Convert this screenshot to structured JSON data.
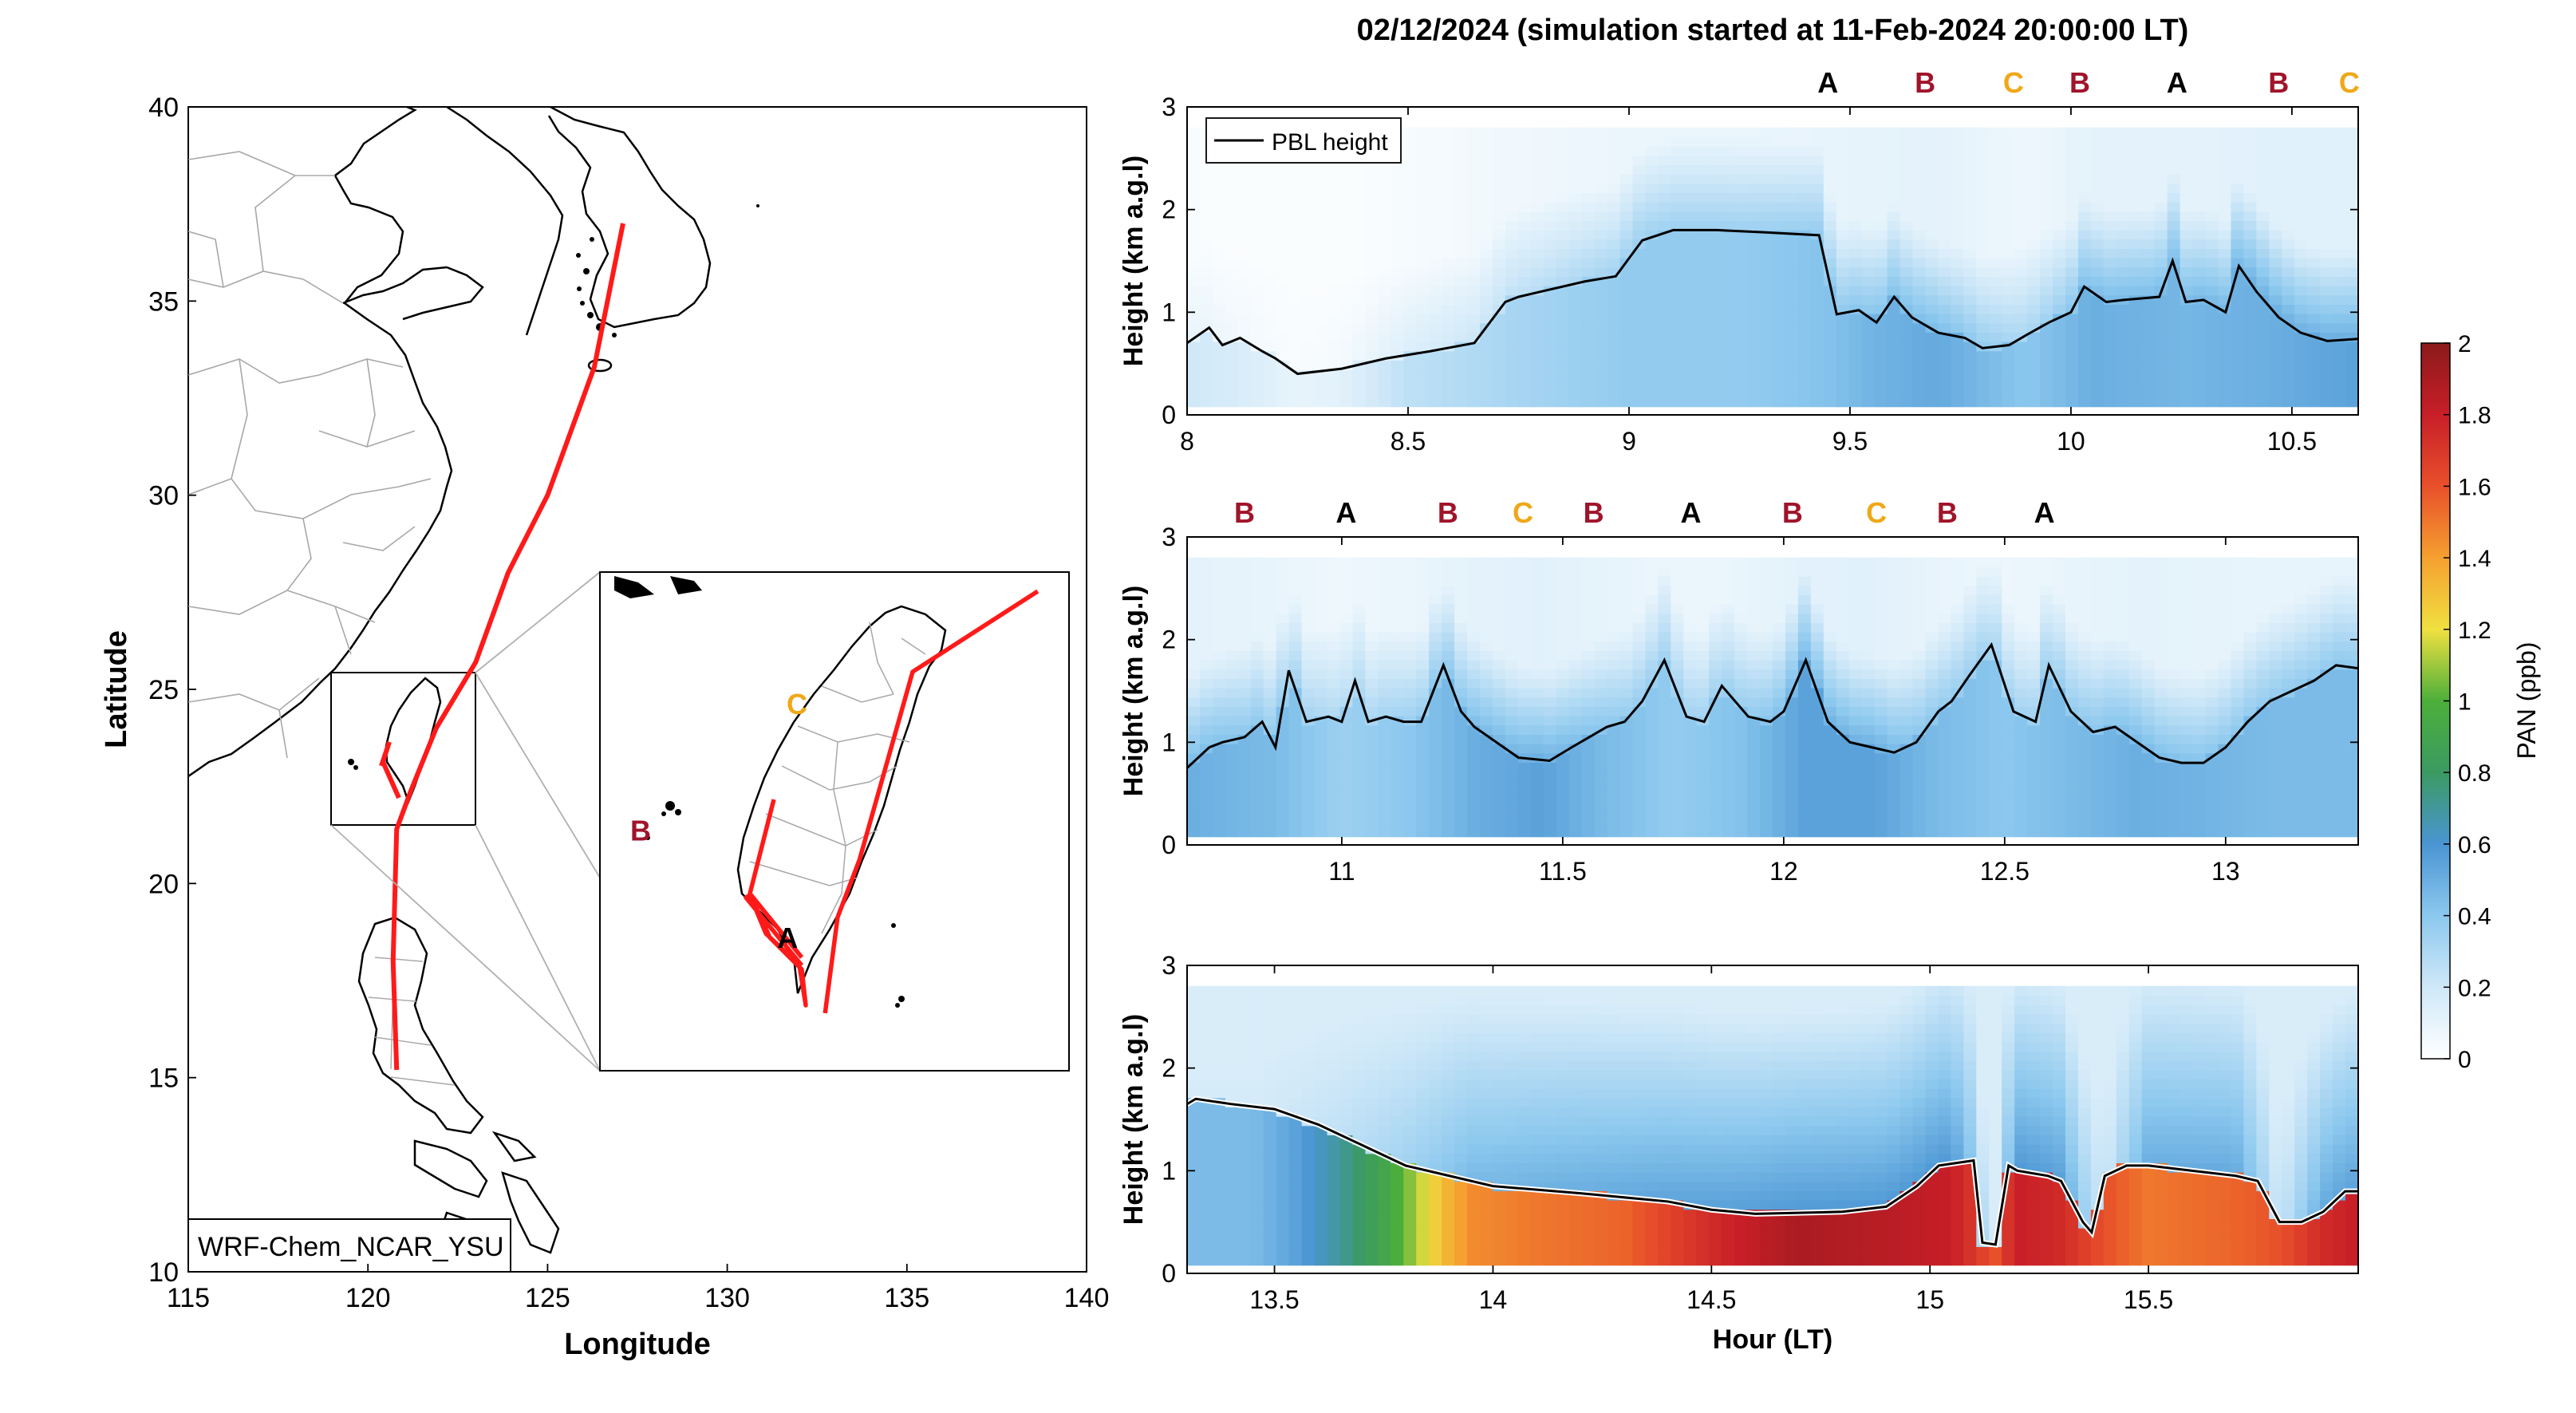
{
  "title": "02/12/2024 (simulation started at 11-Feb-2024 20:00:00 LT)",
  "colors": {
    "track": "#ff1a1a",
    "label_A": "#000000",
    "label_B": "#a0142a",
    "label_C": "#f0a818",
    "pbl_line": "#000000",
    "coast": "#000000",
    "border": "#a8a8a8"
  },
  "map": {
    "xlabel": "Longitude",
    "ylabel": "Latitude",
    "xticks": [
      115,
      120,
      125,
      130,
      135,
      140
    ],
    "yticks": [
      10,
      15,
      20,
      25,
      30,
      35,
      40
    ],
    "xlim": [
      115,
      140
    ],
    "ylim": [
      10,
      40
    ],
    "model_label": "WRF-Chem_NCAR_YSU",
    "inset_markers": [
      "A",
      "B",
      "C"
    ],
    "track_points": [
      [
        127.1,
        37.0
      ],
      [
        126.3,
        33.3
      ],
      [
        125.0,
        30.0
      ],
      [
        123.9,
        28.0
      ],
      [
        123.0,
        25.7
      ],
      [
        121.9,
        24.0
      ],
      [
        121.2,
        22.4
      ],
      [
        120.8,
        21.4
      ],
      [
        120.7,
        18.0
      ],
      [
        120.8,
        15.2
      ]
    ],
    "inset_track_points": [
      [
        139.0,
        25.5
      ],
      [
        135.0,
        23.4
      ],
      [
        133.3,
        18.5
      ],
      [
        132.6,
        17.0
      ],
      [
        132.2,
        14.5
      ]
    ],
    "inset_label_positions": {
      "A": [
        131.0,
        16.2
      ],
      "B": [
        126.3,
        19.0
      ],
      "C": [
        131.3,
        22.3
      ]
    },
    "inset_box": {
      "x": [
        119.0,
        123.0
      ],
      "y": [
        21.5,
        26.5
      ]
    }
  },
  "chart_data": [
    {
      "type": "heatmap",
      "panel": "top",
      "title": "",
      "xlabel": "",
      "ylabel": "Height (km a.g.l)",
      "xlim": [
        8.0,
        10.65
      ],
      "ylim": [
        0,
        3
      ],
      "xticks": [
        8,
        8.5,
        9,
        9.5,
        10,
        10.5
      ],
      "yticks": [
        0,
        1,
        2,
        3
      ],
      "legend": {
        "entry": "PBL height",
        "position": "top-left"
      },
      "site_labels": [
        {
          "x": 9.45,
          "label": "A"
        },
        {
          "x": 9.67,
          "label": "B"
        },
        {
          "x": 9.87,
          "label": "C"
        },
        {
          "x": 10.02,
          "label": "B"
        },
        {
          "x": 10.24,
          "label": "A"
        },
        {
          "x": 10.47,
          "label": "B"
        },
        {
          "x": 10.63,
          "label": "C"
        }
      ],
      "pbl_height": {
        "x": [
          8.0,
          8.05,
          8.08,
          8.12,
          8.17,
          8.2,
          8.25,
          8.35,
          8.45,
          8.55,
          8.65,
          8.72,
          8.75,
          8.8,
          8.9,
          8.97,
          9.03,
          9.1,
          9.2,
          9.3,
          9.43,
          9.47,
          9.52,
          9.56,
          9.6,
          9.64,
          9.7,
          9.76,
          9.8,
          9.86,
          9.9,
          9.95,
          10.0,
          10.03,
          10.08,
          10.12,
          10.2,
          10.23,
          10.26,
          10.3,
          10.35,
          10.38,
          10.42,
          10.47,
          10.52,
          10.58,
          10.65
        ],
        "y": [
          0.7,
          0.85,
          0.68,
          0.75,
          0.62,
          0.55,
          0.4,
          0.45,
          0.55,
          0.62,
          0.7,
          1.1,
          1.15,
          1.2,
          1.3,
          1.35,
          1.7,
          1.8,
          1.8,
          1.78,
          1.75,
          0.98,
          1.02,
          0.9,
          1.15,
          0.95,
          0.8,
          0.75,
          0.65,
          0.68,
          0.78,
          0.9,
          1.0,
          1.25,
          1.1,
          1.12,
          1.15,
          1.5,
          1.1,
          1.12,
          1.0,
          1.45,
          1.2,
          0.95,
          0.8,
          0.72,
          0.74
        ]
      },
      "pan_profile": {
        "x": [
          8.0,
          8.15,
          8.25,
          8.35,
          8.5,
          8.75,
          9.0,
          9.25,
          9.45,
          9.55,
          9.7,
          9.9,
          10.05,
          10.25,
          10.45,
          10.65
        ],
        "surface": [
          0.2,
          0.15,
          0.1,
          0.12,
          0.25,
          0.32,
          0.38,
          0.38,
          0.42,
          0.48,
          0.52,
          0.4,
          0.5,
          0.47,
          0.5,
          0.55
        ],
        "aloft": [
          0.1,
          0.05,
          0.03,
          0.05,
          0.15,
          0.25,
          0.35,
          0.35,
          0.38,
          0.42,
          0.45,
          0.3,
          0.45,
          0.45,
          0.5,
          0.5
        ]
      }
    },
    {
      "type": "heatmap",
      "panel": "middle",
      "title": "",
      "xlabel": "",
      "ylabel": "Height (km a.g.l)",
      "xlim": [
        10.65,
        13.3
      ],
      "ylim": [
        0,
        3
      ],
      "xticks": [
        11,
        11.5,
        12,
        12.5,
        13
      ],
      "yticks": [
        0,
        1,
        2,
        3
      ],
      "site_labels": [
        {
          "x": 10.78,
          "label": "B"
        },
        {
          "x": 11.01,
          "label": "A"
        },
        {
          "x": 11.24,
          "label": "B"
        },
        {
          "x": 11.41,
          "label": "C"
        },
        {
          "x": 11.57,
          "label": "B"
        },
        {
          "x": 11.79,
          "label": "A"
        },
        {
          "x": 12.02,
          "label": "B"
        },
        {
          "x": 12.21,
          "label": "C"
        },
        {
          "x": 12.37,
          "label": "B"
        },
        {
          "x": 12.59,
          "label": "A"
        }
      ],
      "pbl_height": {
        "x": [
          10.65,
          10.7,
          10.73,
          10.78,
          10.82,
          10.85,
          10.88,
          10.92,
          10.97,
          11.0,
          11.03,
          11.06,
          11.1,
          11.14,
          11.18,
          11.23,
          11.27,
          11.3,
          11.35,
          11.4,
          11.47,
          11.52,
          11.6,
          11.64,
          11.68,
          11.73,
          11.78,
          11.82,
          11.86,
          11.92,
          11.97,
          12.0,
          12.05,
          12.1,
          12.15,
          12.2,
          12.25,
          12.3,
          12.35,
          12.38,
          12.42,
          12.47,
          12.52,
          12.57,
          12.6,
          12.65,
          12.7,
          12.75,
          12.8,
          12.85,
          12.9,
          12.95,
          13.0,
          13.05,
          13.1,
          13.15,
          13.2,
          13.25,
          13.3
        ],
        "y": [
          0.75,
          0.95,
          1.0,
          1.05,
          1.2,
          0.95,
          1.7,
          1.2,
          1.25,
          1.2,
          1.6,
          1.2,
          1.25,
          1.2,
          1.2,
          1.75,
          1.3,
          1.15,
          1.0,
          0.85,
          0.82,
          0.95,
          1.15,
          1.2,
          1.4,
          1.8,
          1.25,
          1.2,
          1.55,
          1.25,
          1.2,
          1.3,
          1.8,
          1.2,
          1.0,
          0.95,
          0.9,
          1.0,
          1.3,
          1.4,
          1.65,
          1.95,
          1.3,
          1.2,
          1.75,
          1.3,
          1.1,
          1.15,
          1.0,
          0.85,
          0.8,
          0.8,
          0.95,
          1.2,
          1.4,
          1.5,
          1.6,
          1.75,
          1.72
        ]
      },
      "pan_profile": {
        "x": [
          10.65,
          10.85,
          11.0,
          11.15,
          11.3,
          11.45,
          11.6,
          11.75,
          11.9,
          12.05,
          12.2,
          12.35,
          12.5,
          12.65,
          12.8,
          12.95,
          13.1,
          13.3
        ],
        "surface": [
          0.5,
          0.45,
          0.35,
          0.4,
          0.5,
          0.55,
          0.45,
          0.38,
          0.42,
          0.55,
          0.55,
          0.45,
          0.4,
          0.45,
          0.5,
          0.48,
          0.45,
          0.45
        ],
        "aloft": [
          0.45,
          0.38,
          0.28,
          0.35,
          0.45,
          0.5,
          0.4,
          0.33,
          0.36,
          0.48,
          0.5,
          0.38,
          0.32,
          0.38,
          0.45,
          0.42,
          0.38,
          0.4
        ]
      }
    },
    {
      "type": "heatmap",
      "panel": "bottom",
      "title": "",
      "xlabel": "Hour (LT)",
      "ylabel": "Height (km a.g.l)",
      "xlim": [
        13.3,
        15.98
      ],
      "ylim": [
        0,
        3
      ],
      "xticks": [
        13.5,
        14,
        14.5,
        15,
        15.5
      ],
      "yticks": [
        0,
        1,
        2,
        3
      ],
      "pbl_height": {
        "x": [
          13.3,
          13.32,
          13.4,
          13.5,
          13.6,
          13.7,
          13.8,
          13.9,
          14.0,
          14.2,
          14.4,
          14.5,
          14.6,
          14.8,
          14.9,
          14.97,
          15.02,
          15.1,
          15.12,
          15.15,
          15.18,
          15.2,
          15.27,
          15.3,
          15.35,
          15.37,
          15.4,
          15.45,
          15.5,
          15.6,
          15.7,
          15.75,
          15.8,
          15.85,
          15.9,
          15.95,
          15.98
        ],
        "y": [
          1.65,
          1.7,
          1.65,
          1.6,
          1.45,
          1.25,
          1.05,
          0.95,
          0.85,
          0.78,
          0.7,
          0.62,
          0.58,
          0.6,
          0.65,
          0.85,
          1.05,
          1.1,
          0.3,
          0.28,
          1.05,
          1.0,
          0.95,
          0.9,
          0.5,
          0.4,
          0.95,
          1.05,
          1.05,
          1.0,
          0.95,
          0.9,
          0.5,
          0.5,
          0.6,
          0.8,
          0.8
        ]
      },
      "pan_profile": {
        "x": [
          13.3,
          13.45,
          13.55,
          13.65,
          13.75,
          13.82,
          13.88,
          13.95,
          14.1,
          14.3,
          14.5,
          14.7,
          14.9,
          15.05,
          15.15,
          15.2,
          15.3,
          15.4,
          15.5,
          15.7,
          15.8,
          15.9,
          15.98
        ],
        "surface": [
          0.45,
          0.45,
          0.55,
          0.7,
          0.9,
          1.1,
          1.3,
          1.45,
          1.5,
          1.55,
          1.75,
          1.9,
          1.85,
          1.8,
          1.6,
          1.8,
          1.75,
          1.6,
          1.5,
          1.55,
          1.6,
          1.75,
          1.8
        ],
        "aloft": [
          0.4,
          0.4,
          0.5,
          0.62,
          0.8,
          0.95,
          1.1,
          1.3,
          1.4,
          1.5,
          1.6,
          1.7,
          1.7,
          1.7,
          0.4,
          1.7,
          1.6,
          0.45,
          1.45,
          1.5,
          0.5,
          1.5,
          1.6
        ]
      }
    }
  ],
  "colorbar": {
    "label": "PAN (ppb)",
    "min": 0,
    "max": 2,
    "ticks": [
      0,
      0.2,
      0.4,
      0.6,
      0.8,
      1,
      1.2,
      1.4,
      1.6,
      1.8,
      2
    ],
    "colors": [
      "#ffffff",
      "#cfe8f8",
      "#8cc8ee",
      "#4a95d3",
      "#3b9a62",
      "#4caf3a",
      "#f0e040",
      "#f5a030",
      "#e8502a",
      "#c81e28",
      "#8b1a1a"
    ]
  }
}
